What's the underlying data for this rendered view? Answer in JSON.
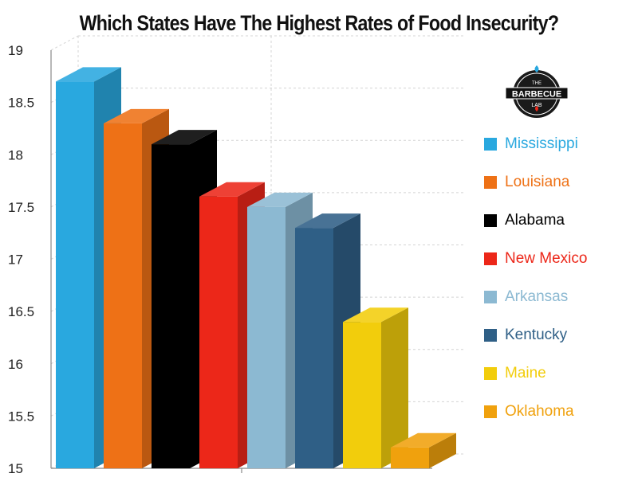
{
  "chart_data": {
    "type": "bar",
    "title": "Which States Have The Highest Rates of Food Insecurity?",
    "categories": [
      "Mississippi",
      "Louisiana",
      "Alabama",
      "New Mexico",
      "Arkansas",
      "Kentucky",
      "Maine",
      "Oklahoma"
    ],
    "values": [
      18.7,
      18.3,
      18.1,
      17.6,
      17.5,
      17.3,
      16.4,
      15.2
    ],
    "colors": [
      "#29a8df",
      "#ee7116",
      "#000000",
      "#ec2719",
      "#8cb9d2",
      "#2f5f86",
      "#f2cd0c",
      "#f0a10d"
    ],
    "ylim": [
      15,
      19
    ],
    "yticks": [
      "19",
      "18.5",
      "18",
      "17.5",
      "17",
      "16.5",
      "16",
      "15.5",
      "15"
    ],
    "grid": true,
    "legend_position": "right",
    "legend": [
      "Mississippi",
      "Louisiana",
      "Alabama",
      "New Mexico",
      "Arkansas",
      "Kentucky",
      "Maine",
      "Oklahoma"
    ]
  },
  "logo": {
    "icon": "barbecue-lab-logo",
    "line1": "THE",
    "line2": "BARBECUE",
    "line3": "LAB"
  }
}
